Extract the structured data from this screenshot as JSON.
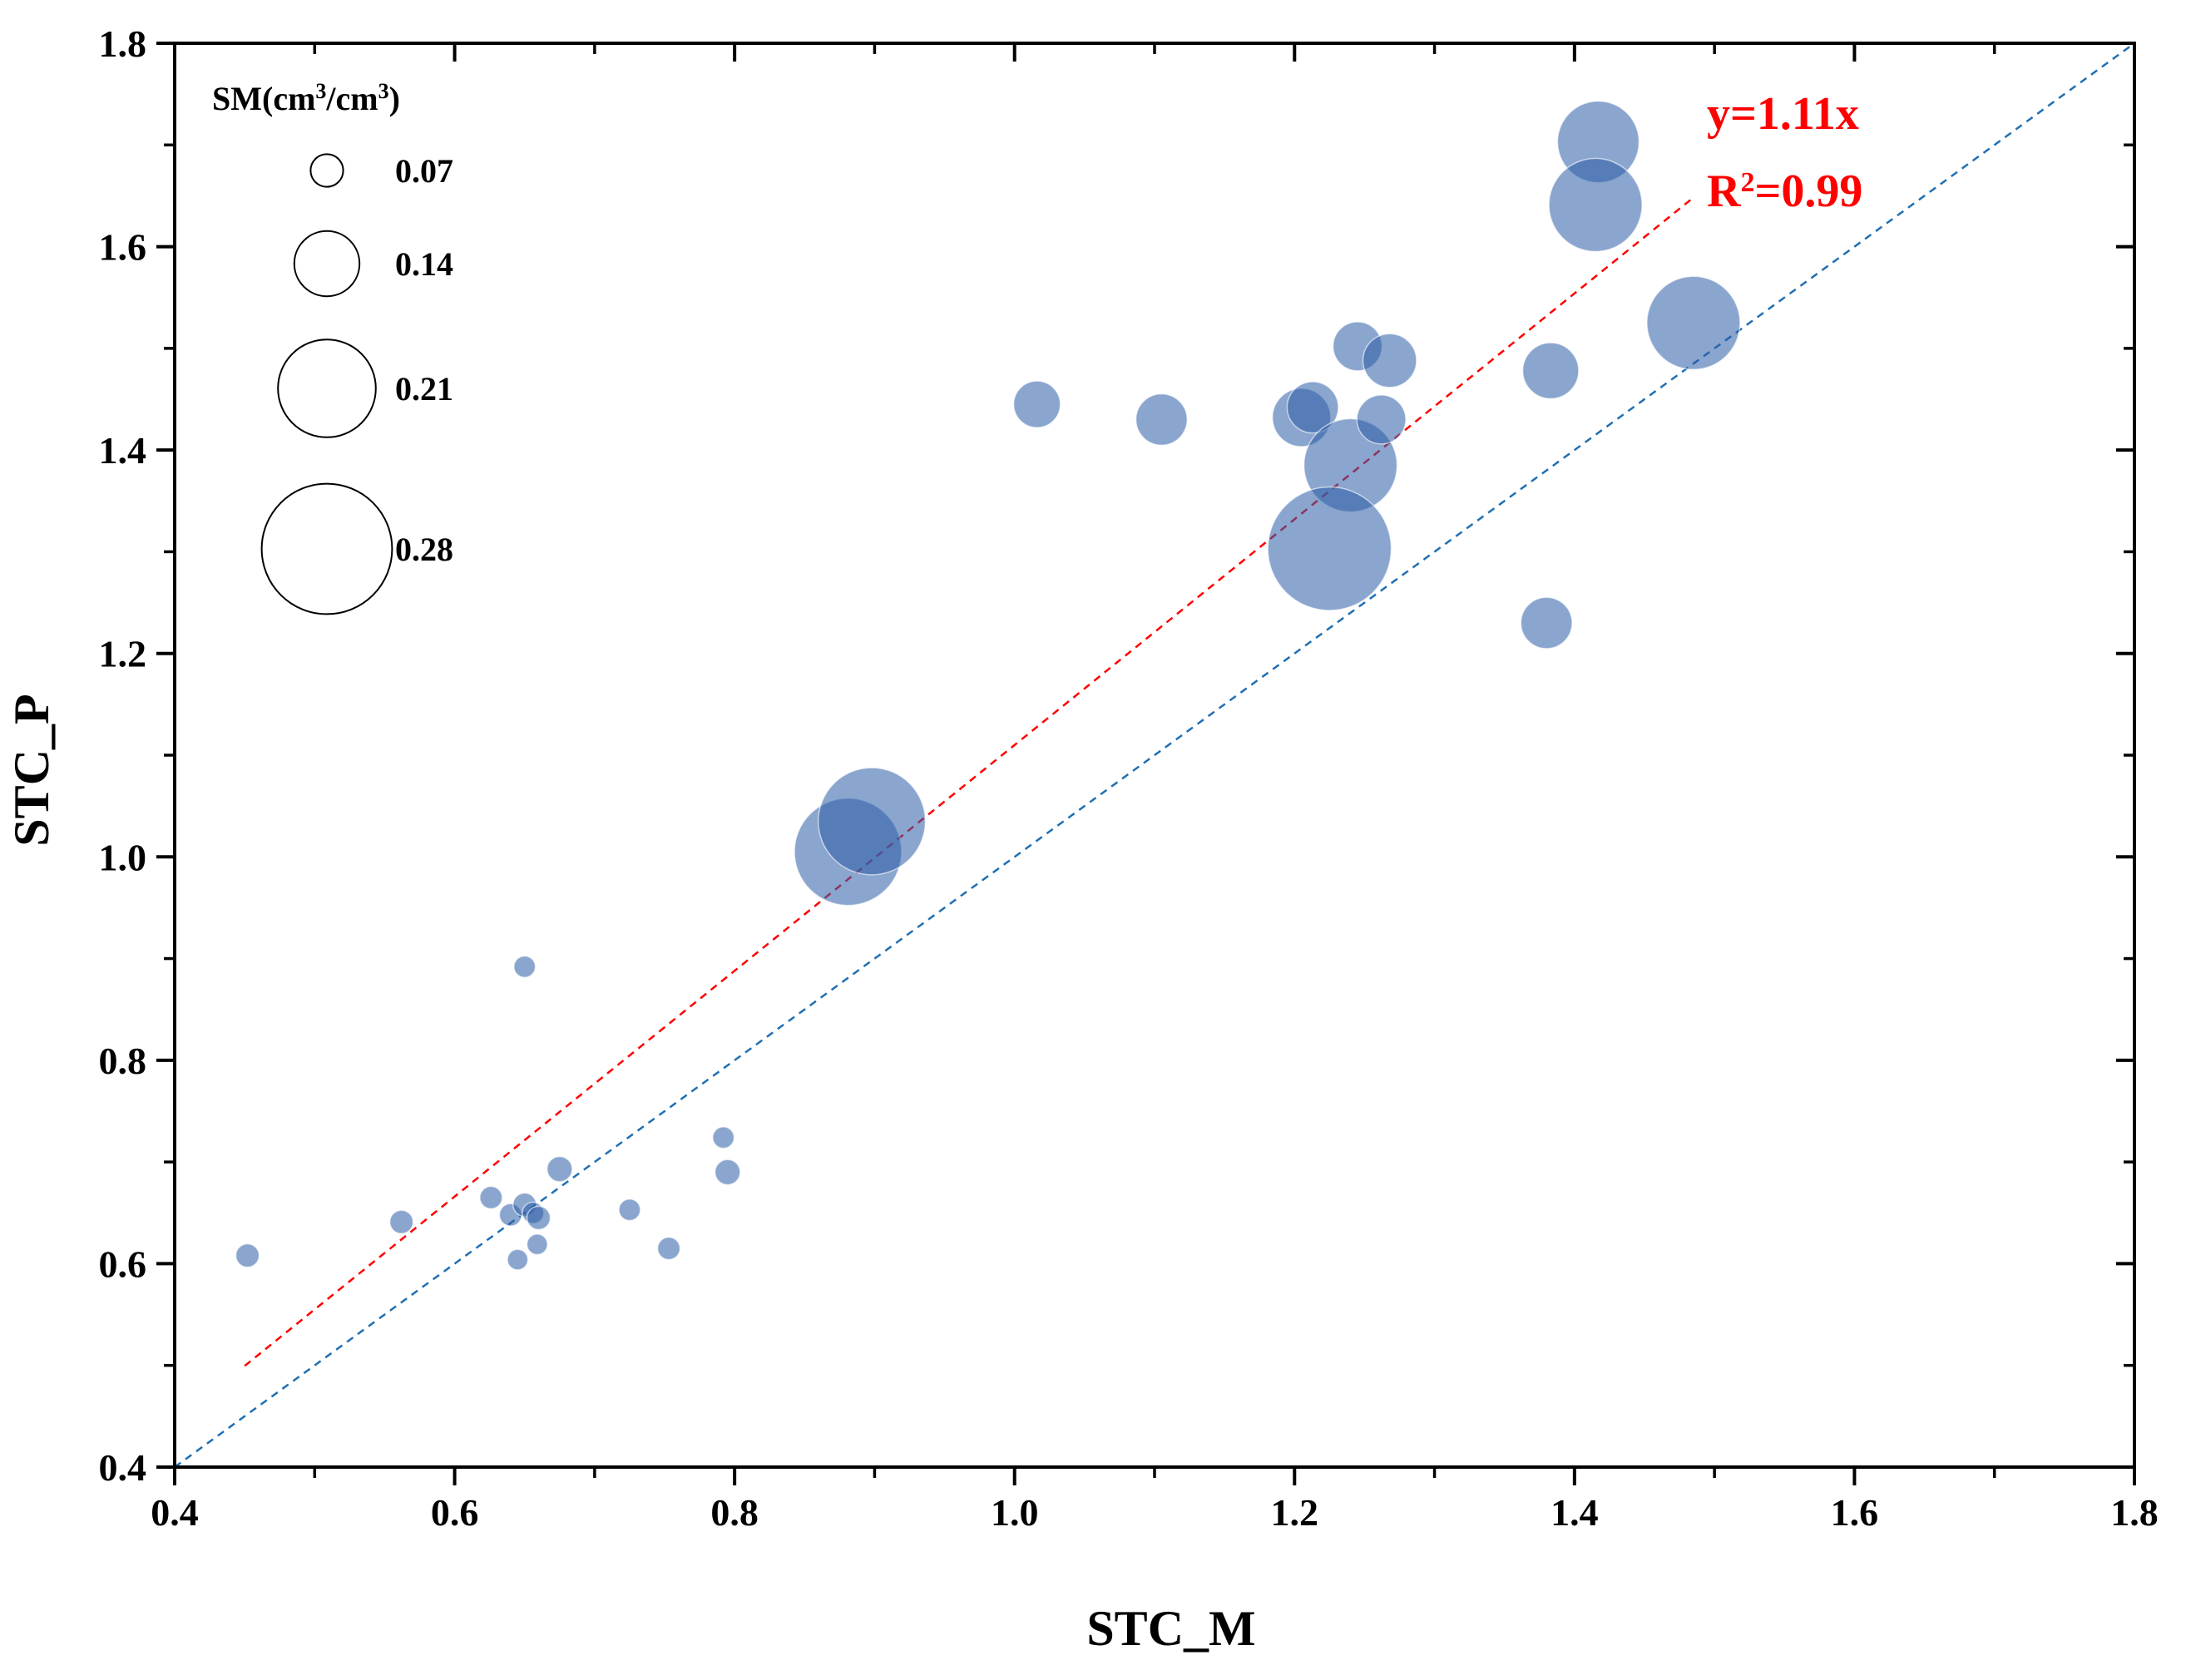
{
  "chart_data": {
    "type": "scatter",
    "subtype": "bubble",
    "xlabel": "STC_M",
    "ylabel": "STC_P",
    "xlim": [
      0.4,
      1.8
    ],
    "ylim": [
      0.4,
      1.8
    ],
    "xticks": [
      "0.4",
      "0.6",
      "0.8",
      "1.0",
      "1.2",
      "1.4",
      "1.6",
      "1.8"
    ],
    "yticks": [
      "0.4",
      "0.6",
      "0.8",
      "1.0",
      "1.2",
      "1.4",
      "1.6",
      "1.8"
    ],
    "minor_ticks": true,
    "grid": false,
    "size_legend": {
      "title_base": "SM(cm",
      "title_sup1": "3",
      "title_mid": "/cm",
      "title_sup2": "3",
      "title_end": ")",
      "entries": [
        {
          "label": "0.07",
          "value": 0.07
        },
        {
          "label": "0.14",
          "value": 0.14
        },
        {
          "label": "0.21",
          "value": 0.21
        },
        {
          "label": "0.28",
          "value": 0.28
        }
      ]
    },
    "fit_line": {
      "slope": 1.11,
      "x_range": [
        0.45,
        1.485
      ],
      "color": "#ff0000",
      "label_eq": "y=1.11x",
      "label_r_base": "R",
      "label_r_sup": "2",
      "label_r_end": "=0.99"
    },
    "one_to_one_line": {
      "slope": 1.0,
      "x_range": [
        0.4,
        1.8
      ],
      "color": "#1f6fb4"
    },
    "point_color": "#2e5fa8",
    "point_opacity": 0.56,
    "points": [
      {
        "x": 0.452,
        "y": 0.608,
        "sm": 0.05
      },
      {
        "x": 0.562,
        "y": 0.641,
        "sm": 0.05
      },
      {
        "x": 0.626,
        "y": 0.665,
        "sm": 0.048
      },
      {
        "x": 0.64,
        "y": 0.648,
        "sm": 0.048
      },
      {
        "x": 0.65,
        "y": 0.658,
        "sm": 0.05
      },
      {
        "x": 0.656,
        "y": 0.65,
        "sm": 0.046
      },
      {
        "x": 0.66,
        "y": 0.645,
        "sm": 0.05
      },
      {
        "x": 0.645,
        "y": 0.604,
        "sm": 0.044
      },
      {
        "x": 0.659,
        "y": 0.619,
        "sm": 0.044
      },
      {
        "x": 0.65,
        "y": 0.892,
        "sm": 0.046
      },
      {
        "x": 0.675,
        "y": 0.693,
        "sm": 0.054
      },
      {
        "x": 0.725,
        "y": 0.653,
        "sm": 0.046
      },
      {
        "x": 0.753,
        "y": 0.615,
        "sm": 0.048
      },
      {
        "x": 0.792,
        "y": 0.724,
        "sm": 0.046
      },
      {
        "x": 0.795,
        "y": 0.69,
        "sm": 0.054
      },
      {
        "x": 0.881,
        "y": 1.005,
        "sm": 0.23
      },
      {
        "x": 0.898,
        "y": 1.035,
        "sm": 0.23
      },
      {
        "x": 1.016,
        "y": 1.445,
        "sm": 0.1
      },
      {
        "x": 1.105,
        "y": 1.43,
        "sm": 0.11
      },
      {
        "x": 1.205,
        "y": 1.432,
        "sm": 0.125
      },
      {
        "x": 1.213,
        "y": 1.442,
        "sm": 0.11
      },
      {
        "x": 1.24,
        "y": 1.385,
        "sm": 0.2
      },
      {
        "x": 1.225,
        "y": 1.303,
        "sm": 0.265
      },
      {
        "x": 1.245,
        "y": 1.502,
        "sm": 0.105
      },
      {
        "x": 1.262,
        "y": 1.43,
        "sm": 0.105
      },
      {
        "x": 1.268,
        "y": 1.488,
        "sm": 0.115
      },
      {
        "x": 1.38,
        "y": 1.23,
        "sm": 0.11
      },
      {
        "x": 1.383,
        "y": 1.478,
        "sm": 0.12
      },
      {
        "x": 1.417,
        "y": 1.703,
        "sm": 0.175
      },
      {
        "x": 1.415,
        "y": 1.641,
        "sm": 0.2
      },
      {
        "x": 1.485,
        "y": 1.525,
        "sm": 0.2
      }
    ]
  }
}
